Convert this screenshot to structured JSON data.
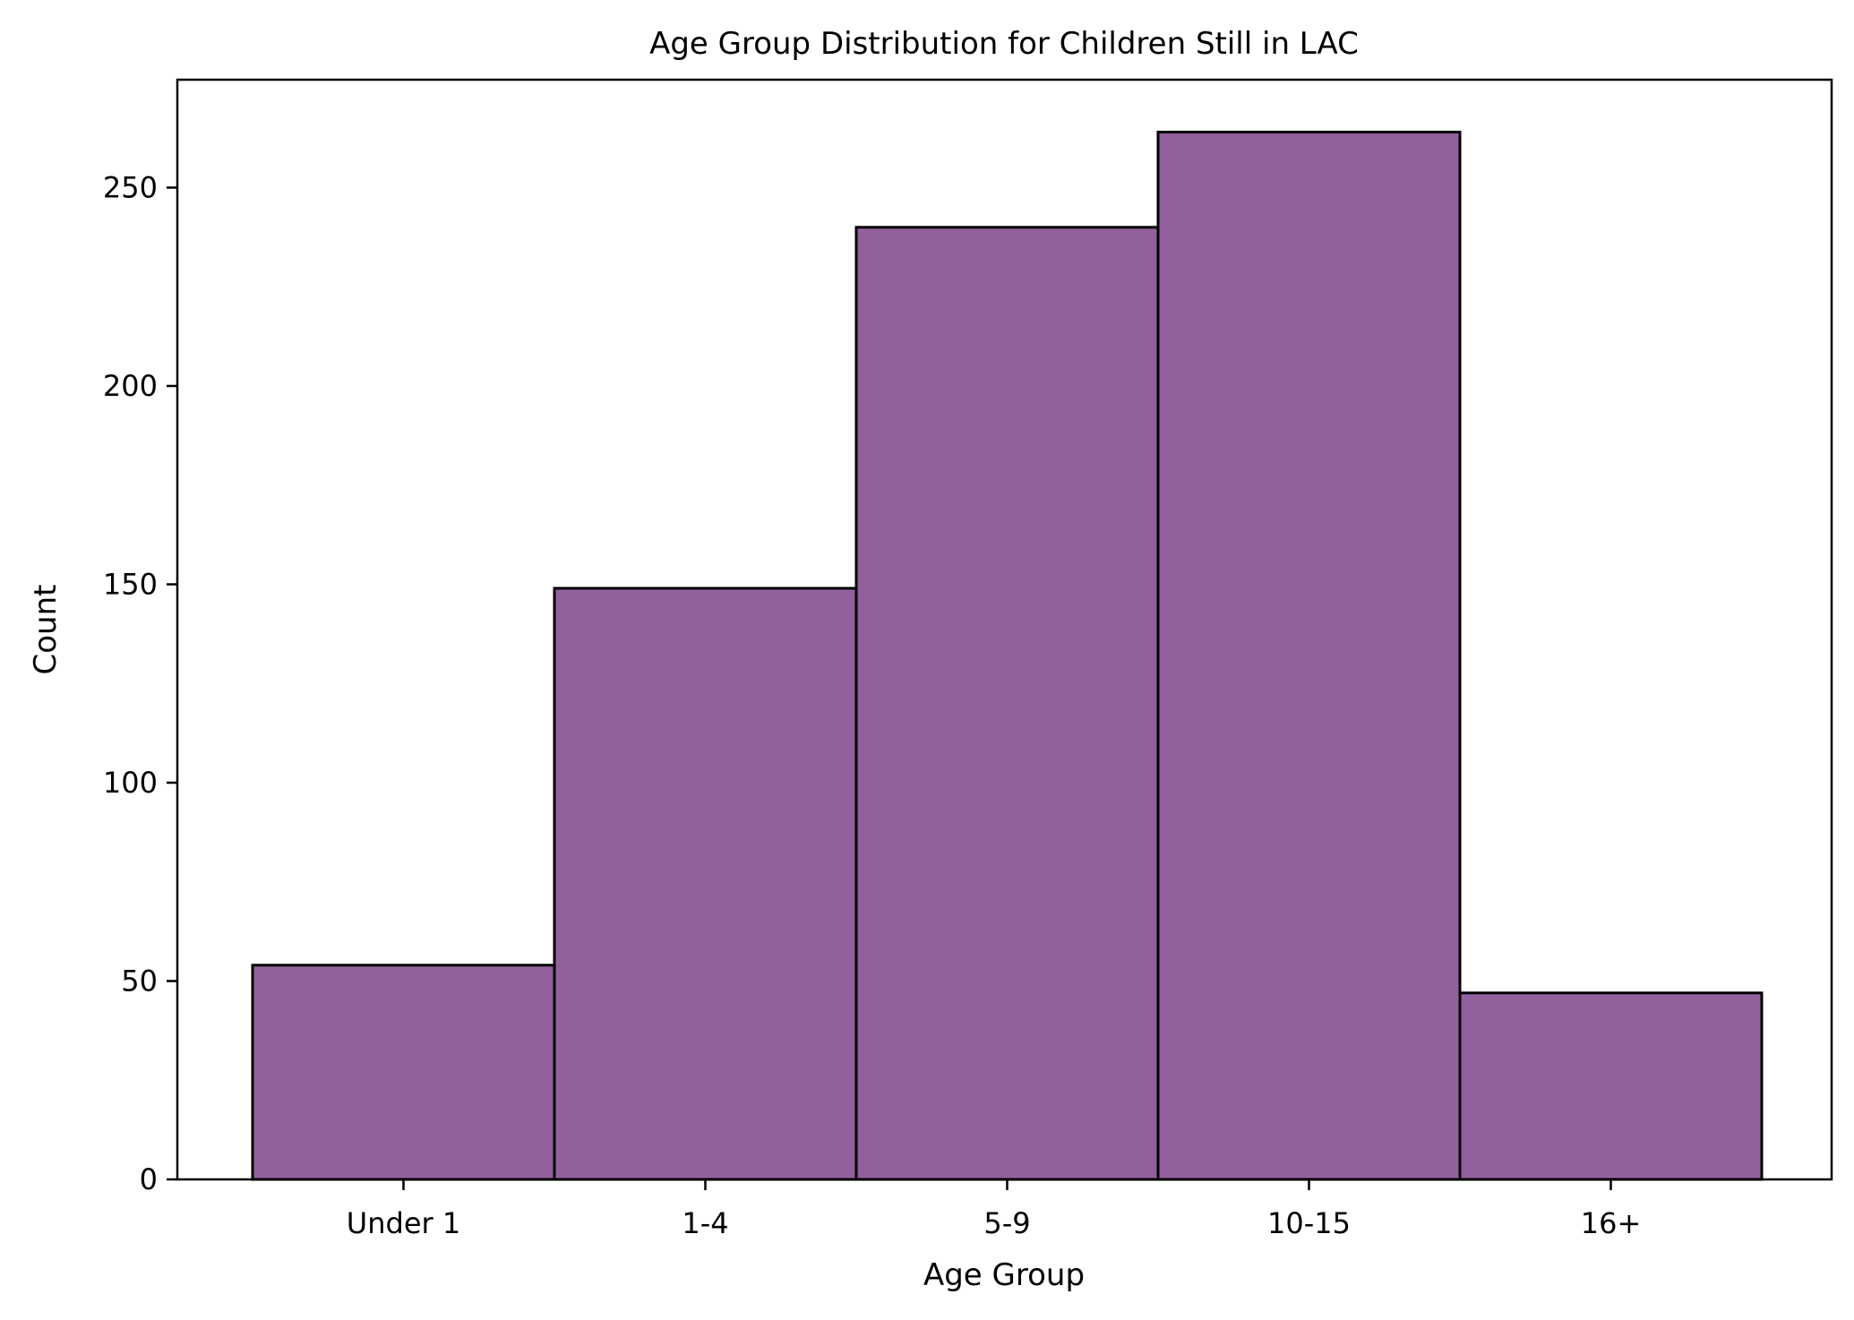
{
  "chart_data": {
    "type": "bar",
    "title": "Age Group Distribution for Children Still in LAC",
    "xlabel": "Age Group",
    "ylabel": "Count",
    "categories": [
      "Under 1",
      "1-4",
      "5-9",
      "10-15",
      "16+"
    ],
    "values": [
      54,
      149,
      240,
      264,
      47
    ],
    "ylim": [
      0,
      277.2
    ],
    "yticks": [
      0,
      50,
      100,
      150,
      200,
      250
    ],
    "grid": false,
    "colors": {
      "bar_fill": "#93609e",
      "bar_edge": "#000000",
      "axes": "#000000",
      "background": "#ffffff"
    }
  }
}
